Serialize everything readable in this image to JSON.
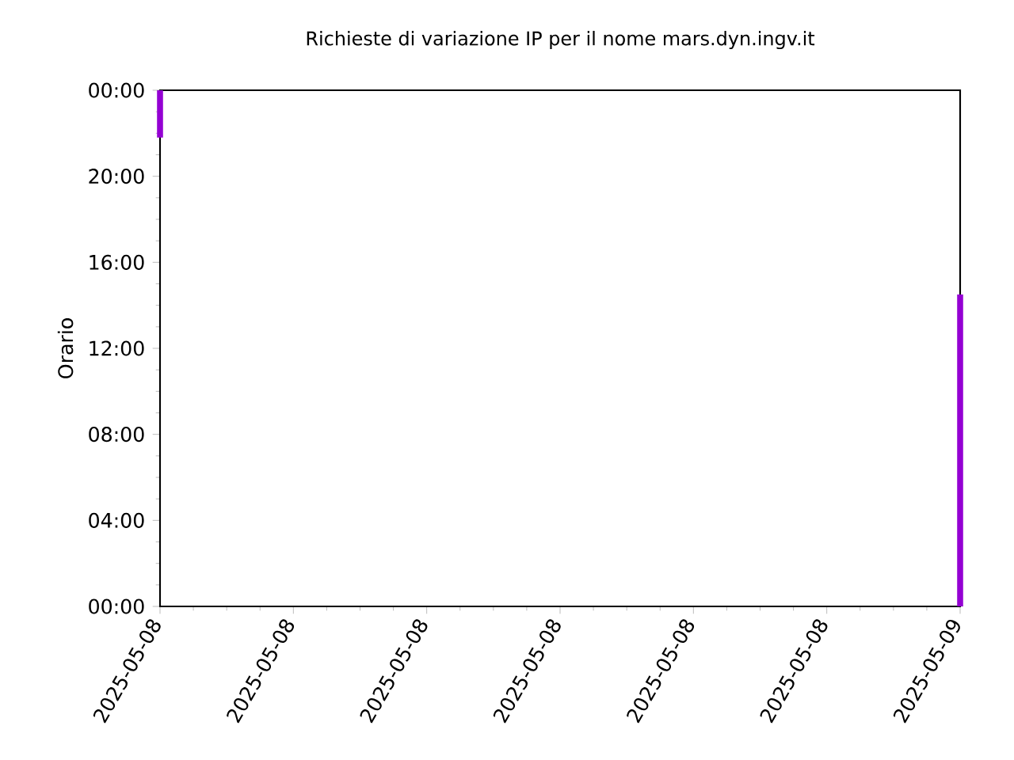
{
  "chart_data": {
    "type": "bar",
    "title": "Richieste di variazione IP per il nome mars.dyn.ingv.it",
    "ylabel": "Orario",
    "x": [
      "2025-05-08T00:00",
      "2025-05-09T00:00"
    ],
    "base": [
      21.8,
      0
    ],
    "values": [
      2.2,
      14.5
    ],
    "color": "#9400d3",
    "xlim": [
      "2025-05-08T00:00",
      "2025-05-09T00:00"
    ],
    "xticks": [
      {
        "value": "2025-05-08T00:00",
        "label": "2025-05-08"
      },
      {
        "value": "2025-05-08T04:00",
        "label": "2025-05-08"
      },
      {
        "value": "2025-05-08T08:00",
        "label": "2025-05-08"
      },
      {
        "value": "2025-05-08T12:00",
        "label": "2025-05-08"
      },
      {
        "value": "2025-05-08T16:00",
        "label": "2025-05-08"
      },
      {
        "value": "2025-05-08T20:00",
        "label": "2025-05-08"
      },
      {
        "value": "2025-05-09T00:00",
        "label": "2025-05-09"
      }
    ],
    "ylim": [
      0,
      24
    ],
    "yticks": [
      {
        "value": 0,
        "label": "00:00"
      },
      {
        "value": 4,
        "label": "04:00"
      },
      {
        "value": 8,
        "label": "08:00"
      },
      {
        "value": 12,
        "label": "12:00"
      },
      {
        "value": 16,
        "label": "16:00"
      },
      {
        "value": 20,
        "label": "20:00"
      },
      {
        "value": 24,
        "label": "00:00"
      }
    ]
  }
}
